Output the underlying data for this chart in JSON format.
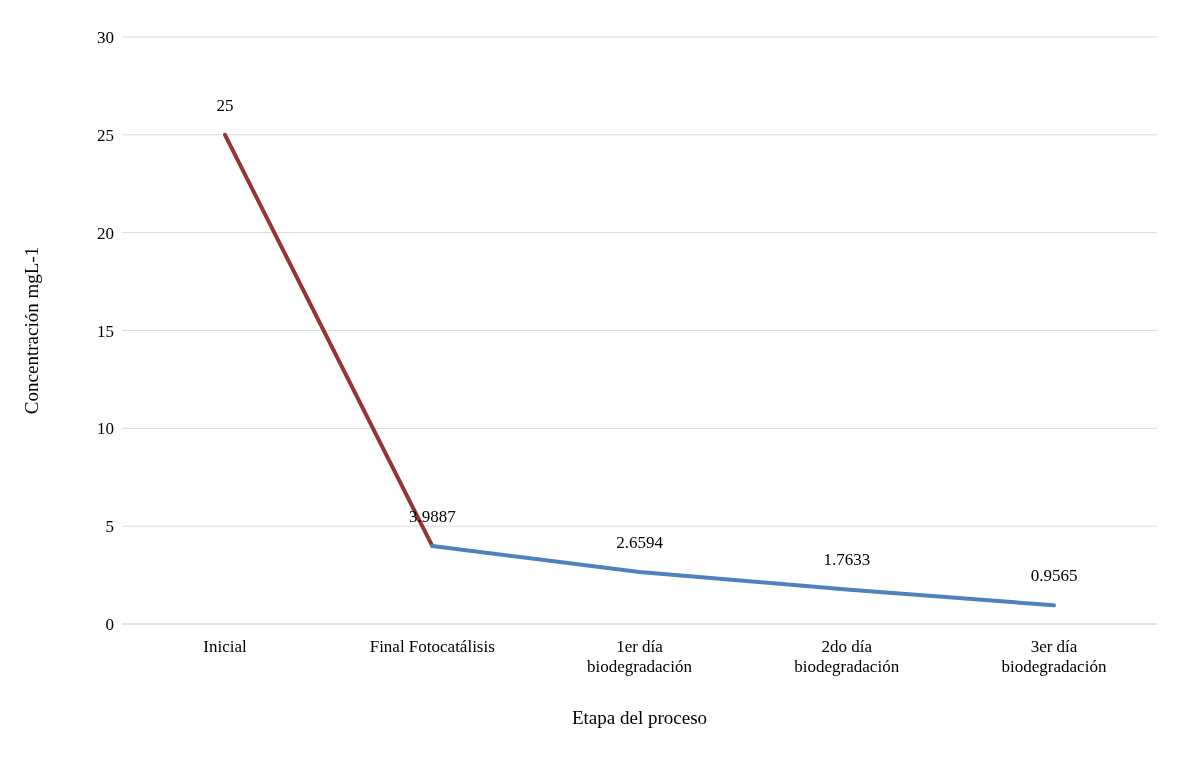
{
  "chart_data": {
    "type": "line",
    "xlabel": "Etapa del proceso",
    "ylabel": "Concentración mgL-1",
    "categories": [
      "Inicial",
      "Final Fotocatálisis",
      "1er día biodegradación",
      "2do día biodegradación",
      "3er día biodegradación"
    ],
    "series": [
      {
        "color": "#943634",
        "values": [
          25,
          3.9887,
          null,
          null,
          null
        ],
        "value_labels": [
          "25",
          "3.9887",
          null,
          null,
          null
        ]
      },
      {
        "color": "#4f81bd",
        "values": [
          null,
          3.9887,
          2.6594,
          1.7633,
          0.9565
        ],
        "value_labels": [
          null,
          null,
          "2.6594",
          "1.7633",
          "0.9565"
        ]
      }
    ],
    "ylim": [
      0,
      30
    ],
    "yticks": [
      0,
      5,
      10,
      15,
      20,
      25,
      30
    ],
    "grid": "y"
  }
}
